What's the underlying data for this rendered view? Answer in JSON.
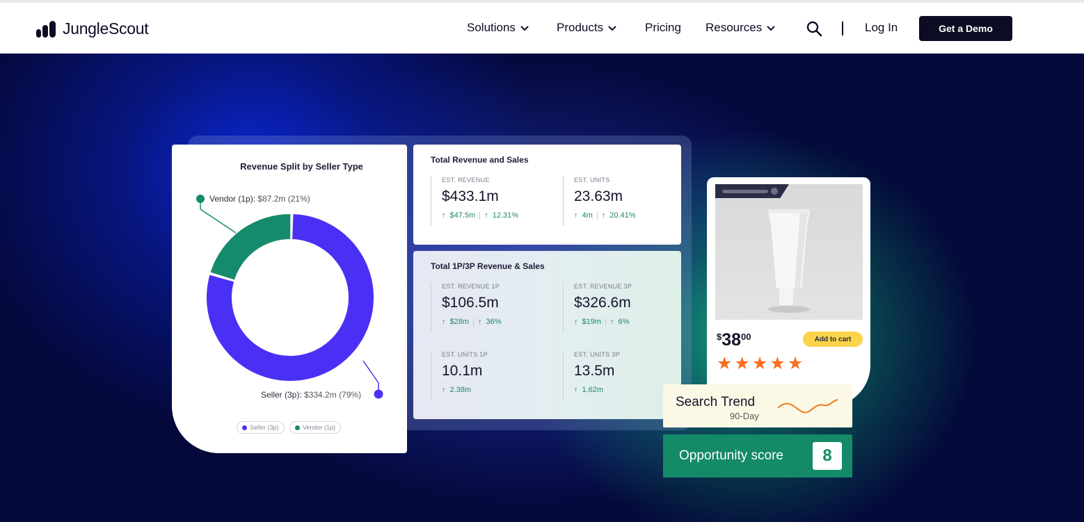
{
  "nav": {
    "logo_text": "JungleScout",
    "items": [
      {
        "label": "Solutions",
        "has_dropdown": true
      },
      {
        "label": "Products",
        "has_dropdown": true
      },
      {
        "label": "Pricing",
        "has_dropdown": false
      },
      {
        "label": "Resources",
        "has_dropdown": true
      }
    ],
    "login_label": "Log In",
    "demo_label": "Get a Demo"
  },
  "hero": {
    "donut_card": {
      "title": "Revenue Split by Seller Type",
      "vendor_label": "Vendor (1p):",
      "vendor_value": "$87.2m (21%)",
      "seller_label": "Seller (3p):",
      "seller_value": "$334.2m (79%)",
      "legend": [
        "Seller (3p)",
        "Vendor (1p)"
      ]
    },
    "total_card": {
      "title": "Total Revenue and Sales",
      "metrics": [
        {
          "label": "EST. REVENUE",
          "value": "$433.1m",
          "change_abs": "$47.5m",
          "change_pct": "12.31%"
        },
        {
          "label": "EST. UNITS",
          "value": "23.63m",
          "change_abs": "4m",
          "change_pct": "20.41%"
        }
      ]
    },
    "split_card": {
      "title": "Total 1P/3P Revenue & Sales",
      "metrics": [
        {
          "label": "EST. REVENUE 1P",
          "value": "$106.5m",
          "change_abs": "$28m",
          "change_pct": "36%"
        },
        {
          "label": "EST. REVENUE 3P",
          "value": "$326.6m",
          "change_abs": "$19m",
          "change_pct": "6%"
        },
        {
          "label": "EST. UNITS 1P",
          "value": "10.1m",
          "change_abs": "2.38m"
        },
        {
          "label": "EST. UNITS 3P",
          "value": "13.5m",
          "change_abs": "1.62m"
        }
      ]
    },
    "product_card": {
      "price_currency": "$",
      "price_main": "38",
      "price_cents": "00",
      "cart_label": "Add to cart",
      "rating_stars": 5
    },
    "trend": {
      "title": "Search Trend",
      "subtitle": "90-Day"
    },
    "opportunity": {
      "label": "Opportunity score",
      "score": "8"
    }
  },
  "chart_data": {
    "type": "pie",
    "title": "Revenue Split by Seller Type",
    "categories": [
      "Seller (3p)",
      "Vendor (1p)"
    ],
    "values": [
      334.2,
      87.2
    ],
    "percent": [
      79,
      21
    ],
    "colors": [
      "#4a30f5",
      "#168a6c"
    ],
    "legend": "bottom"
  },
  "colors": {
    "navy": "#0c0c24",
    "accent_purple": "#4a30f5",
    "accent_green": "#168a6c",
    "positive_change": "#1a8a6a",
    "star_orange": "#f96d1c",
    "cart_yellow": "#fcd44a"
  },
  "icons": [
    "logo-bars-icon",
    "chevron-down-icon",
    "search-icon",
    "up-arrow-icon",
    "star-icon",
    "trend-line-icon"
  ]
}
